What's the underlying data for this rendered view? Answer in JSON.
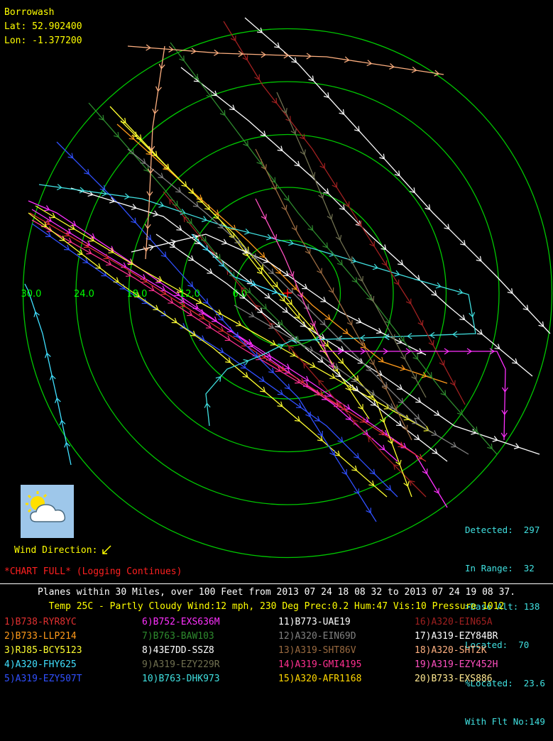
{
  "location": {
    "name": "Borrowash",
    "lat": "Lat: 52.902400",
    "lon": "Lon: -1.377200"
  },
  "range_rings": [
    {
      "label": "6.0"
    },
    {
      "label": "12.0"
    },
    {
      "label": "18.0"
    },
    {
      "label": "24.0"
    },
    {
      "label": "30.0"
    }
  ],
  "colors": {
    "rings": "#00c800",
    "ring_labels": "#00ff00",
    "center_marker": "#ff0000",
    "info_text": "#ffff00",
    "stats_text": "#40e0e0",
    "warning_text": "#ff2020"
  },
  "stats": {
    "detected": "Detected:  297",
    "in_range": "In Range:  32",
    "base_alt": ">Base Alt: 138",
    "located": "Located:  70",
    "pct_located": "%Located:  23.6",
    "with_flt_no": "With Flt No:149"
  },
  "weather_icon": "partly-cloudy-icon",
  "wind_direction_label": "Wind Direction:",
  "chart_full": "*CHART FULL* (Logging Continues)",
  "footer": {
    "summary": "Planes within 30 Miles, over 100 Feet from 2013 07 24  18 08 32 to 2013 07 24  19 08 37.",
    "weather": "Temp 25C - Partly Cloudy  Wind:12 mph, 230 Deg Prec:0.2 Hum:47 Vis:10 Pressure 1012"
  },
  "flights": [
    {
      "label": "1)B738-RYR8YC",
      "color": "#e03030"
    },
    {
      "label": "2)B733-LLP214",
      "color": "#ff9a1a"
    },
    {
      "label": "3)RJ85-BCY5123",
      "color": "#ffff30"
    },
    {
      "label": "4)A320-FHY625",
      "color": "#40e0ff"
    },
    {
      "label": "5)A319-EZY507T",
      "color": "#3050ff"
    },
    {
      "label": "6)B752-EXS636M",
      "color": "#ff30ff"
    },
    {
      "label": "7)B763-BAW103",
      "color": "#2e8b2e"
    },
    {
      "label": "8)43E7DD-SSZ8",
      "color": "#ffffff"
    },
    {
      "label": "9)A319-EZY229R",
      "color": "#707050"
    },
    {
      "label": "10)B763-DHK973",
      "color": "#40e0e0"
    },
    {
      "label": "11)B773-UAE19",
      "color": "#ffffff"
    },
    {
      "label": "12)A320-EIN69D",
      "color": "#808080"
    },
    {
      "label": "13)A319-SHT86V",
      "color": "#9a6a40"
    },
    {
      "label": "14)A319-GMI4195",
      "color": "#ff3090"
    },
    {
      "label": "15)A320-AFR1168",
      "color": "#ffd700"
    },
    {
      "label": "16)A320-EIN65A",
      "color": "#a02020"
    },
    {
      "label": "17)A319-EZY84BR",
      "color": "#ffffff"
    },
    {
      "label": "18)A320-SHT2K",
      "color": "#ffb080"
    },
    {
      "label": "19)A319-EZY452H",
      "color": "#ff50c0"
    },
    {
      "label": "20)B733-EXS886",
      "color": "#ffe890"
    }
  ]
}
